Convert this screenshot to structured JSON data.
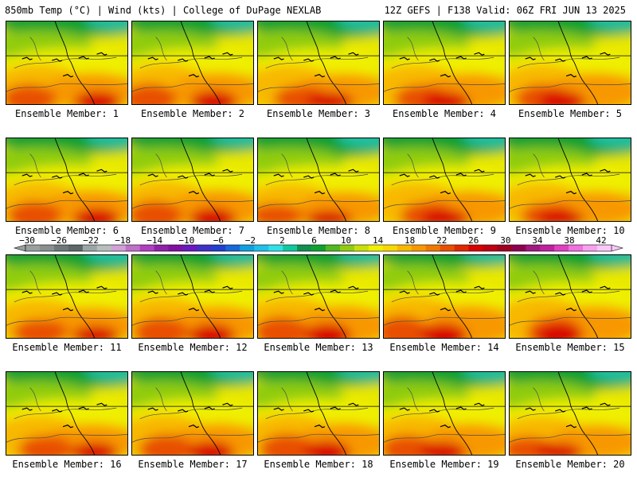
{
  "header": {
    "left": "850mb Temp (°C) | Wind (kts) | College of DuPage NEXLAB",
    "right": "12Z GEFS | F138 Valid: 06Z FRI JUN 13 2025"
  },
  "member_label_prefix": "Ensemble Member: ",
  "members": [
    {
      "number": "1",
      "warmth": 0.55
    },
    {
      "number": "2",
      "warmth": 0.6
    },
    {
      "number": "3",
      "warmth": 0.45
    },
    {
      "number": "4",
      "warmth": 0.5
    },
    {
      "number": "5",
      "warmth": 0.55
    },
    {
      "number": "6",
      "warmth": 0.55
    },
    {
      "number": "7",
      "warmth": 0.6
    },
    {
      "number": "8",
      "warmth": 0.3
    },
    {
      "number": "9",
      "warmth": 0.45
    },
    {
      "number": "10",
      "warmth": 0.35
    },
    {
      "number": "11",
      "warmth": 0.45
    },
    {
      "number": "12",
      "warmth": 0.65
    },
    {
      "number": "13",
      "warmth": 0.7
    },
    {
      "number": "14",
      "warmth": 0.75
    },
    {
      "number": "15",
      "warmth": 0.65
    },
    {
      "number": "16",
      "warmth": 0.5
    },
    {
      "number": "17",
      "warmth": 0.6
    },
    {
      "number": "18",
      "warmth": 0.65
    },
    {
      "number": "19",
      "warmth": 0.55
    },
    {
      "number": "20",
      "warmth": 0.4
    }
  ],
  "colorbar": {
    "tick_labels": [
      "−30",
      "−26",
      "−22",
      "−18",
      "−14",
      "−10",
      "−6",
      "−2",
      "2",
      "6",
      "10",
      "14",
      "18",
      "22",
      "26",
      "30",
      "34",
      "38",
      "42"
    ],
    "colors": [
      "#9aa0a0",
      "#8a9090",
      "#6e7878",
      "#5c6868",
      "#9aa6a6",
      "#b6bebe",
      "#d0a0d8",
      "#c070c8",
      "#b040c0",
      "#9020a8",
      "#8010a0",
      "#6a18c0",
      "#4030c8",
      "#2040d0",
      "#1868d8",
      "#10a0e0",
      "#20c0e8",
      "#30e0e8",
      "#10c8a0",
      "#109050",
      "#10a030",
      "#50b820",
      "#90cc10",
      "#c8e008",
      "#f0f000",
      "#f8d800",
      "#f8b800",
      "#f89800",
      "#f07800",
      "#e85000",
      "#e02800",
      "#d80000",
      "#c00010",
      "#a00020",
      "#900050",
      "#a01880",
      "#c020a0",
      "#e040c0",
      "#f070e0",
      "#f8a0f0",
      "#f8c8f8"
    ]
  }
}
